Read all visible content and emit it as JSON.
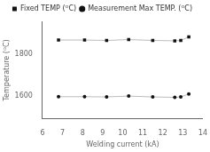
{
  "chart_data": {
    "type": "line",
    "xlabel": "Welding current (kA)",
    "ylabel": "Temperature (ᴼC)",
    "color": "#bbbbbb",
    "series": [
      {
        "name": "Fixed TEMP (ᴼC)",
        "color": "#111111",
        "marker": "square",
        "x": [
          6.8,
          8.1,
          9.2,
          10.3,
          11.5,
          12.6,
          12.9,
          13.3
        ],
        "values": [
          1870,
          1870,
          1868,
          1872,
          1868,
          1866,
          1868,
          1885
        ]
      },
      {
        "name": "Measurement Max TEMP. (ᴼC)",
        "color": "#111111",
        "marker": "circle",
        "x": [
          6.8,
          8.1,
          9.2,
          10.3,
          11.5,
          12.6,
          12.9,
          13.3
        ],
        "values": [
          1597,
          1597,
          1596,
          1600,
          1596,
          1594,
          1596,
          1610
        ]
      }
    ],
    "xlim": [
      6,
      14
    ],
    "ylim": [
      1490,
      1960
    ],
    "xticks": [
      6,
      7,
      8,
      9,
      10,
      11,
      12,
      13,
      14
    ],
    "yticks": [
      1600,
      1800
    ],
    "grid": false,
    "legend": "top"
  }
}
